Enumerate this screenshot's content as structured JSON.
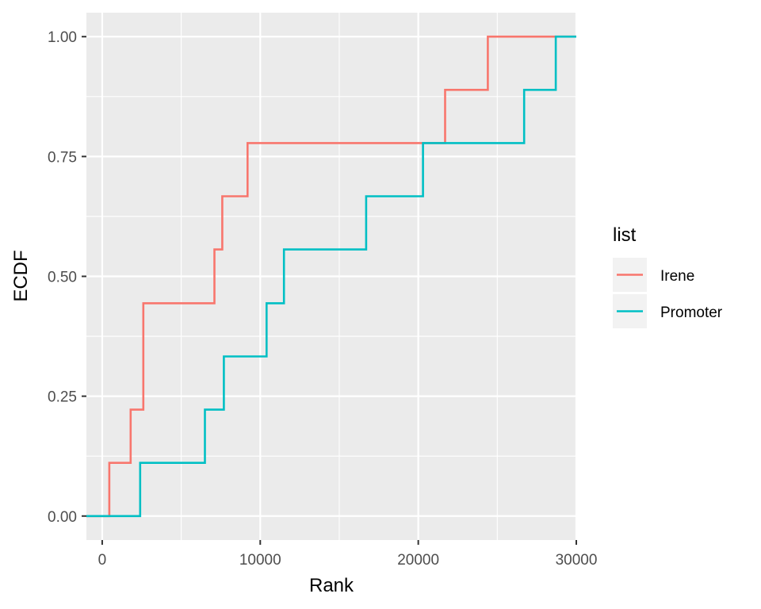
{
  "chart_data": {
    "type": "line",
    "step": true,
    "title": "",
    "xlabel": "Rank",
    "ylabel": "ECDF",
    "xlim": [
      -1000,
      30000
    ],
    "ylim": [
      -0.05,
      1.05
    ],
    "x_ticks": [
      0,
      10000,
      20000,
      30000
    ],
    "x_tick_labels": [
      "0",
      "10000",
      "20000",
      "30000"
    ],
    "y_ticks": [
      0,
      0.25,
      0.5,
      0.75,
      1
    ],
    "y_tick_labels": [
      "0.00",
      "0.25",
      "0.50",
      "0.75",
      "1.00"
    ],
    "grid": true,
    "legend": {
      "title": "list",
      "position": "right"
    },
    "series": [
      {
        "name": "Irene",
        "color": "#F8766D",
        "x": [
          -1000,
          450,
          1800,
          2600,
          7100,
          7600,
          9200,
          21700,
          24400,
          30000
        ],
        "y": [
          0.0,
          0.111,
          0.222,
          0.444,
          0.556,
          0.667,
          0.778,
          0.889,
          1.0,
          1.0
        ]
      },
      {
        "name": "Promoter",
        "color": "#00BFC4",
        "x": [
          -1000,
          2400,
          6500,
          7700,
          10400,
          11500,
          16700,
          20300,
          26700,
          28700,
          30000
        ],
        "y": [
          0.0,
          0.111,
          0.222,
          0.333,
          0.444,
          0.556,
          0.667,
          0.778,
          0.889,
          1.0,
          1.0
        ]
      }
    ]
  }
}
